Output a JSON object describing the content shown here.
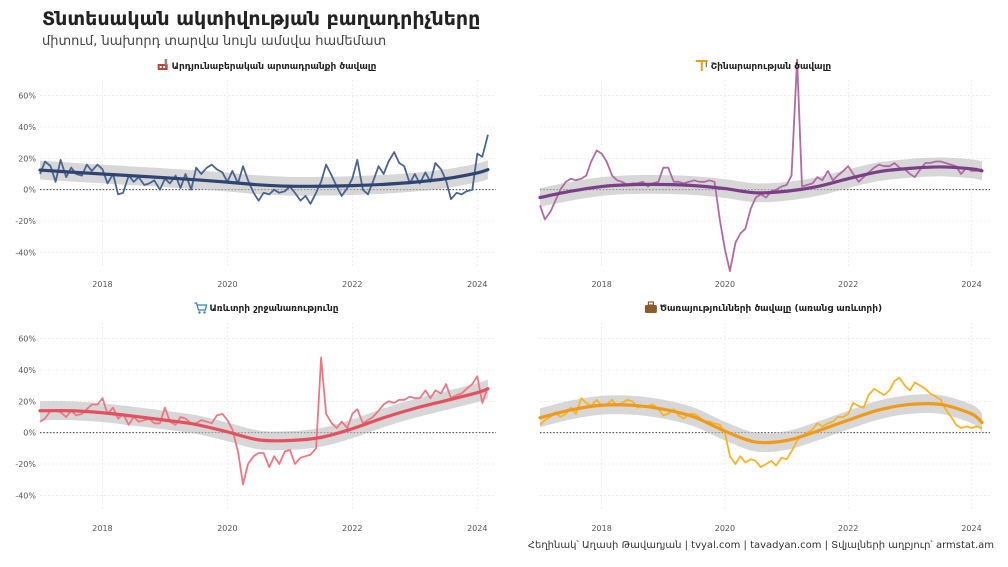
{
  "title": "Տնտեսական ակտիվության բաղադրիչները",
  "subtitle": "միտում, նախորդ տարվա նույն ամսվա համեմատ",
  "caption": "Հեղինակ՝ Աղասի Թավադյան   |   tvyal.com   |   tavadyan.com   |   Տվյալների աղբյուր՝ armstat.am",
  "chart_data": [
    {
      "type": "line",
      "title": "Արդյունաբերական արտադրանքի ծավալը",
      "icon": "factory-icon",
      "color": "#4a6491",
      "trend_color": "#2f4473",
      "xlim": [
        2017,
        2024.3
      ],
      "ylim": [
        -50,
        70
      ],
      "xticks": [
        2018,
        2020,
        2022,
        2024
      ],
      "yticks": [
        -40,
        -20,
        0,
        20,
        40,
        60
      ],
      "ytick_labels": [
        "-40%",
        "-20%",
        "0%",
        "20%",
        "40%",
        "60%"
      ],
      "series": [
        {
          "role": "actual",
          "x": [
            2017.0,
            2017.08,
            2017.17,
            2017.25,
            2017.33,
            2017.42,
            2017.5,
            2017.58,
            2017.67,
            2017.75,
            2017.83,
            2017.92,
            2018.0,
            2018.08,
            2018.17,
            2018.25,
            2018.33,
            2018.42,
            2018.5,
            2018.58,
            2018.67,
            2018.75,
            2018.83,
            2018.92,
            2019.0,
            2019.08,
            2019.17,
            2019.25,
            2019.33,
            2019.42,
            2019.5,
            2019.58,
            2019.67,
            2019.75,
            2019.83,
            2019.92,
            2020.0,
            2020.08,
            2020.17,
            2020.25,
            2020.33,
            2020.42,
            2020.5,
            2020.58,
            2020.67,
            2020.75,
            2020.83,
            2020.92,
            2021.0,
            2021.08,
            2021.17,
            2021.25,
            2021.33,
            2021.42,
            2021.5,
            2021.58,
            2021.67,
            2021.75,
            2021.83,
            2021.92,
            2022.0,
            2022.08,
            2022.17,
            2022.25,
            2022.33,
            2022.42,
            2022.5,
            2022.58,
            2022.67,
            2022.75,
            2022.83,
            2022.92,
            2023.0,
            2023.08,
            2023.17,
            2023.25,
            2023.33,
            2023.42,
            2023.5,
            2023.58,
            2023.67,
            2023.75,
            2023.83,
            2023.92,
            2024.0,
            2024.08,
            2024.17
          ],
          "y": [
            10,
            18,
            15,
            5,
            19,
            8,
            14,
            10,
            9,
            16,
            12,
            16,
            13,
            4,
            10,
            -3,
            -2,
            9,
            5,
            8,
            3,
            4,
            6,
            0,
            7,
            4,
            9,
            1,
            10,
            0,
            14,
            10,
            14,
            16,
            13,
            11,
            5,
            12,
            4,
            15,
            6,
            -2,
            -7,
            -2,
            -3,
            0,
            -2,
            -1,
            2,
            -2,
            -7,
            -4,
            -9,
            -2,
            5,
            16,
            9,
            2,
            -4,
            1,
            7,
            19,
            0,
            -3,
            5,
            15,
            10,
            18,
            24,
            17,
            15,
            4,
            10,
            4,
            11,
            5,
            17,
            13,
            6,
            -6,
            -2,
            -3,
            -1,
            0,
            23,
            21,
            35
          ]
        },
        {
          "role": "trend",
          "x": [
            2017.0,
            2017.5,
            2018.0,
            2018.5,
            2019.0,
            2019.5,
            2020.0,
            2020.5,
            2021.0,
            2021.5,
            2022.0,
            2022.5,
            2023.0,
            2023.5,
            2024.0,
            2024.17
          ],
          "y": [
            12.5,
            11.2,
            10,
            8.8,
            7.6,
            6.3,
            4.8,
            3.1,
            2.2,
            2.2,
            2.6,
            3.4,
            4.8,
            7,
            10.7,
            12.8
          ]
        }
      ]
    },
    {
      "type": "line",
      "title": "Շինարարության ծավալը",
      "icon": "crane-icon",
      "color": "#b06aa6",
      "trend_color": "#7b3f87",
      "xlim": [
        2017,
        2024.3
      ],
      "ylim": [
        -50,
        70
      ],
      "xticks": [
        2018,
        2020,
        2022,
        2024
      ],
      "yticks": [
        -40,
        -20,
        0,
        20,
        40,
        60
      ],
      "ytick_labels": [
        "-40%",
        "-20%",
        "0%",
        "20%",
        "40%",
        "60%"
      ],
      "series": [
        {
          "role": "actual",
          "x": [
            2017.0,
            2017.08,
            2017.17,
            2017.25,
            2017.33,
            2017.42,
            2017.5,
            2017.58,
            2017.67,
            2017.75,
            2017.83,
            2017.92,
            2018.0,
            2018.08,
            2018.17,
            2018.25,
            2018.33,
            2018.42,
            2018.5,
            2018.58,
            2018.67,
            2018.75,
            2018.83,
            2018.92,
            2019.0,
            2019.08,
            2019.17,
            2019.25,
            2019.33,
            2019.42,
            2019.5,
            2019.58,
            2019.67,
            2019.75,
            2019.83,
            2019.92,
            2020.0,
            2020.08,
            2020.17,
            2020.25,
            2020.33,
            2020.42,
            2020.5,
            2020.58,
            2020.67,
            2020.75,
            2020.83,
            2020.92,
            2021.0,
            2021.08,
            2021.17,
            2021.25,
            2021.33,
            2021.42,
            2021.5,
            2021.58,
            2021.67,
            2021.75,
            2021.83,
            2021.92,
            2022.0,
            2022.08,
            2022.17,
            2022.25,
            2022.33,
            2022.42,
            2022.5,
            2022.58,
            2022.67,
            2022.75,
            2022.83,
            2022.92,
            2023.0,
            2023.08,
            2023.17,
            2023.25,
            2023.33,
            2023.42,
            2023.5,
            2023.58,
            2023.67,
            2023.75,
            2023.83,
            2023.92,
            2024.0,
            2024.08,
            2024.17
          ],
          "y": [
            -10,
            -19,
            -14,
            -7,
            0,
            5,
            7,
            6,
            7,
            9,
            18,
            25,
            23,
            18,
            9,
            6,
            5,
            3,
            4,
            4,
            5,
            2,
            4,
            5,
            14,
            14,
            5,
            5,
            4,
            5,
            6,
            5,
            5,
            6,
            5,
            -20,
            -38,
            -52,
            -34,
            -28,
            -25,
            -12,
            -5,
            -3,
            -5,
            -1,
            0,
            2,
            3,
            9,
            83,
            2,
            3,
            4,
            8,
            6,
            12,
            6,
            9,
            12,
            15,
            10,
            5,
            8,
            11,
            14,
            16,
            15,
            15,
            17,
            14,
            13,
            10,
            8,
            13,
            17,
            17,
            18,
            18,
            17,
            16,
            15,
            10,
            14,
            12,
            12,
            13
          ]
        },
        {
          "role": "trend",
          "x": [
            2017.0,
            2017.5,
            2018.0,
            2018.5,
            2019.0,
            2019.5,
            2020.0,
            2020.5,
            2021.0,
            2021.5,
            2022.0,
            2022.5,
            2023.0,
            2023.5,
            2024.0,
            2024.17
          ],
          "y": [
            -5,
            -1,
            2,
            3.2,
            3.3,
            2.6,
            0.7,
            -2,
            -1,
            2,
            7,
            11.5,
            13.6,
            14.5,
            13.3,
            12
          ]
        }
      ]
    },
    {
      "type": "line",
      "title": "Առևտրի շրջանառությունը",
      "icon": "cart-icon",
      "color": "#f07684",
      "trend_color": "#e4505f",
      "xlim": [
        2017,
        2024.3
      ],
      "ylim": [
        -50,
        70
      ],
      "xticks": [
        2018,
        2020,
        2022,
        2024
      ],
      "yticks": [
        -40,
        -20,
        0,
        20,
        40,
        60
      ],
      "ytick_labels": [
        "-40%",
        "-20%",
        "0%",
        "20%",
        "40%",
        "60%"
      ],
      "series": [
        {
          "role": "actual",
          "x": [
            2017.0,
            2017.08,
            2017.17,
            2017.25,
            2017.33,
            2017.42,
            2017.5,
            2017.58,
            2017.67,
            2017.75,
            2017.83,
            2017.92,
            2018.0,
            2018.08,
            2018.17,
            2018.25,
            2018.33,
            2018.42,
            2018.5,
            2018.58,
            2018.67,
            2018.75,
            2018.83,
            2018.92,
            2019.0,
            2019.08,
            2019.17,
            2019.25,
            2019.33,
            2019.42,
            2019.5,
            2019.58,
            2019.67,
            2019.75,
            2019.83,
            2019.92,
            2020.0,
            2020.08,
            2020.17,
            2020.25,
            2020.33,
            2020.42,
            2020.5,
            2020.58,
            2020.67,
            2020.75,
            2020.83,
            2020.92,
            2021.0,
            2021.08,
            2021.17,
            2021.25,
            2021.33,
            2021.42,
            2021.5,
            2021.58,
            2021.67,
            2021.75,
            2021.83,
            2021.92,
            2022.0,
            2022.08,
            2022.17,
            2022.25,
            2022.33,
            2022.42,
            2022.5,
            2022.58,
            2022.67,
            2022.75,
            2022.83,
            2022.92,
            2023.0,
            2023.08,
            2023.17,
            2023.25,
            2023.33,
            2023.42,
            2023.5,
            2023.58,
            2023.67,
            2023.75,
            2023.83,
            2023.92,
            2024.0,
            2024.08,
            2024.17
          ],
          "y": [
            7,
            9,
            14,
            14,
            13,
            10,
            14,
            11,
            12,
            15,
            18,
            18,
            22,
            12,
            16,
            9,
            12,
            5,
            10,
            7,
            8,
            9,
            6,
            6,
            16,
            7,
            5,
            10,
            9,
            6,
            6,
            8,
            7,
            6,
            11,
            12,
            8,
            2,
            -12,
            -33,
            -20,
            -15,
            -13,
            -13,
            -22,
            -15,
            -20,
            -12,
            -11,
            -20,
            -16,
            -15,
            -14,
            -10,
            48,
            12,
            6,
            3,
            7,
            3,
            12,
            15,
            6,
            8,
            10,
            14,
            18,
            20,
            19,
            21,
            21,
            23,
            22,
            22,
            27,
            22,
            27,
            25,
            31,
            22,
            24,
            25,
            28,
            31,
            36,
            19,
            29
          ]
        },
        {
          "role": "trend",
          "x": [
            2017.0,
            2017.5,
            2018.0,
            2018.5,
            2019.0,
            2019.5,
            2020.0,
            2020.5,
            2021.0,
            2021.5,
            2022.0,
            2022.5,
            2023.0,
            2023.5,
            2024.0,
            2024.17
          ],
          "y": [
            14,
            14,
            12.7,
            10.5,
            8,
            5.2,
            0.5,
            -4.6,
            -5,
            -3,
            2.5,
            9.5,
            15.5,
            20.5,
            25.5,
            28
          ]
        }
      ]
    },
    {
      "type": "line",
      "title": "Ծառայությունների ծավալը (առանց առևտրի)",
      "icon": "briefcase-icon",
      "color": "#f7b428",
      "trend_color": "#f09a1b",
      "xlim": [
        2017,
        2024.3
      ],
      "ylim": [
        -50,
        70
      ],
      "xticks": [
        2018,
        2020,
        2022,
        2024
      ],
      "yticks": [
        -40,
        -20,
        0,
        20,
        40,
        60
      ],
      "ytick_labels": [
        "-40%",
        "-20%",
        "0%",
        "20%",
        "40%",
        "60%"
      ],
      "series": [
        {
          "role": "actual",
          "x": [
            2017.0,
            2017.08,
            2017.17,
            2017.25,
            2017.33,
            2017.42,
            2017.5,
            2017.58,
            2017.67,
            2017.75,
            2017.83,
            2017.92,
            2018.0,
            2018.08,
            2018.17,
            2018.25,
            2018.33,
            2018.42,
            2018.5,
            2018.58,
            2018.67,
            2018.75,
            2018.83,
            2018.92,
            2019.0,
            2019.08,
            2019.17,
            2019.25,
            2019.33,
            2019.42,
            2019.5,
            2019.58,
            2019.67,
            2019.75,
            2019.83,
            2019.92,
            2020.0,
            2020.08,
            2020.17,
            2020.25,
            2020.33,
            2020.42,
            2020.5,
            2020.58,
            2020.67,
            2020.75,
            2020.83,
            2020.92,
            2021.0,
            2021.08,
            2021.17,
            2021.25,
            2021.33,
            2021.42,
            2021.5,
            2021.58,
            2021.67,
            2021.75,
            2021.83,
            2021.92,
            2022.0,
            2022.08,
            2022.17,
            2022.25,
            2022.33,
            2022.42,
            2022.5,
            2022.58,
            2022.67,
            2022.75,
            2022.83,
            2022.92,
            2023.0,
            2023.08,
            2023.17,
            2023.25,
            2023.33,
            2023.42,
            2023.5,
            2023.58,
            2023.67,
            2023.75,
            2023.83,
            2023.92,
            2024.0,
            2024.08,
            2024.17
          ],
          "y": [
            5,
            8,
            10,
            13,
            10,
            12,
            16,
            12,
            22,
            19,
            17,
            21,
            17,
            18,
            21,
            17,
            19,
            21,
            20,
            16,
            17,
            17,
            18,
            15,
            11,
            12,
            15,
            11,
            9,
            12,
            12,
            10,
            7,
            7,
            6,
            5,
            0,
            -15,
            -20,
            -15,
            -19,
            -17,
            -18,
            -22,
            -20,
            -18,
            -21,
            -16,
            -17,
            -12,
            -5,
            -2,
            0,
            2,
            6,
            4,
            6,
            7,
            10,
            10,
            12,
            19,
            17,
            16,
            24,
            28,
            26,
            24,
            27,
            33,
            35,
            30,
            27,
            32,
            30,
            28,
            25,
            23,
            21,
            15,
            10,
            5,
            3,
            4,
            3,
            4,
            3
          ]
        },
        {
          "role": "trend",
          "x": [
            2017.0,
            2017.5,
            2018.0,
            2018.5,
            2019.0,
            2019.5,
            2020.0,
            2020.5,
            2021.0,
            2021.5,
            2022.0,
            2022.5,
            2023.0,
            2023.5,
            2024.0,
            2024.17
          ],
          "y": [
            9.5,
            14.5,
            17.5,
            17.5,
            15,
            10,
            1,
            -6,
            -5,
            1,
            8,
            14.5,
            18,
            18,
            12,
            6.5
          ]
        }
      ]
    }
  ]
}
